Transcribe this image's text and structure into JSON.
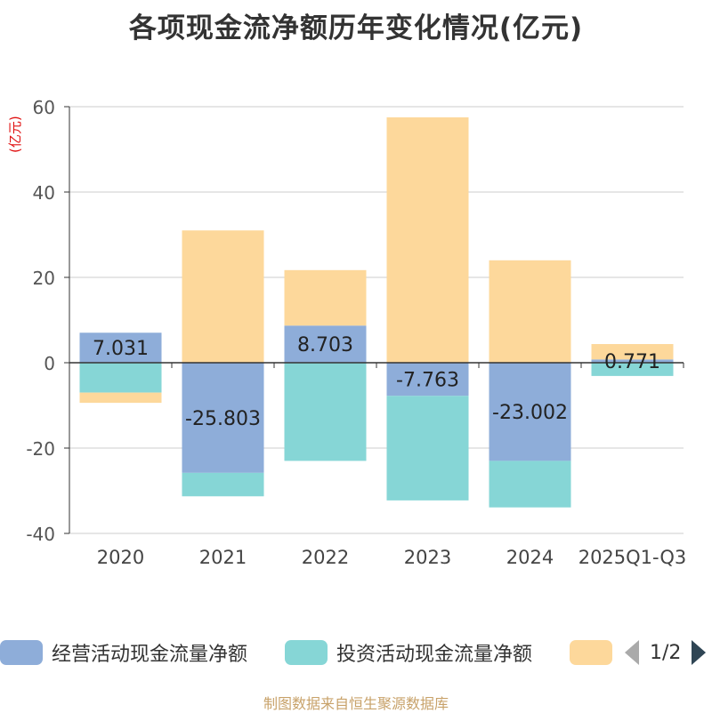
{
  "title": "各项现金流净额历年变化情况(亿元)",
  "source": "制图数据来自恒生聚源数据库",
  "colors": {
    "operating": "#8eadd9",
    "investing": "#86d6d6",
    "financing": "#fdd89b",
    "axis": "#333333",
    "grid": "#cccccc"
  },
  "legend": {
    "items": [
      "经营活动现金流量净额",
      "投资活动现金流量净额",
      ""
    ],
    "page": "1/2"
  },
  "chart_data": {
    "type": "bar",
    "stacked": true,
    "title": "各项现金流净额历年变化情况(亿元)",
    "ylabel": "(亿元)",
    "ylim": [
      -40,
      60
    ],
    "yticks": [
      60,
      40,
      20,
      0,
      -20,
      -40
    ],
    "categories": [
      "2020",
      "2021",
      "2022",
      "2023",
      "2024",
      "2025Q1-Q3"
    ],
    "series": [
      {
        "name": "经营活动现金流量净额",
        "values": [
          7.031,
          -25.803,
          8.703,
          -7.763,
          -23.002,
          0.771
        ],
        "labels": [
          "7.031",
          "-25.803",
          "8.703",
          "-7.763",
          "-23.002",
          "0.771"
        ]
      },
      {
        "name": "投资活动现金流量净额",
        "values": [
          -7.0,
          -5.5,
          -23.0,
          -24.5,
          -10.9,
          -3.1
        ]
      },
      {
        "name": "",
        "values": [
          -2.4,
          31.0,
          13.0,
          57.5,
          24.0,
          3.6
        ]
      }
    ]
  }
}
